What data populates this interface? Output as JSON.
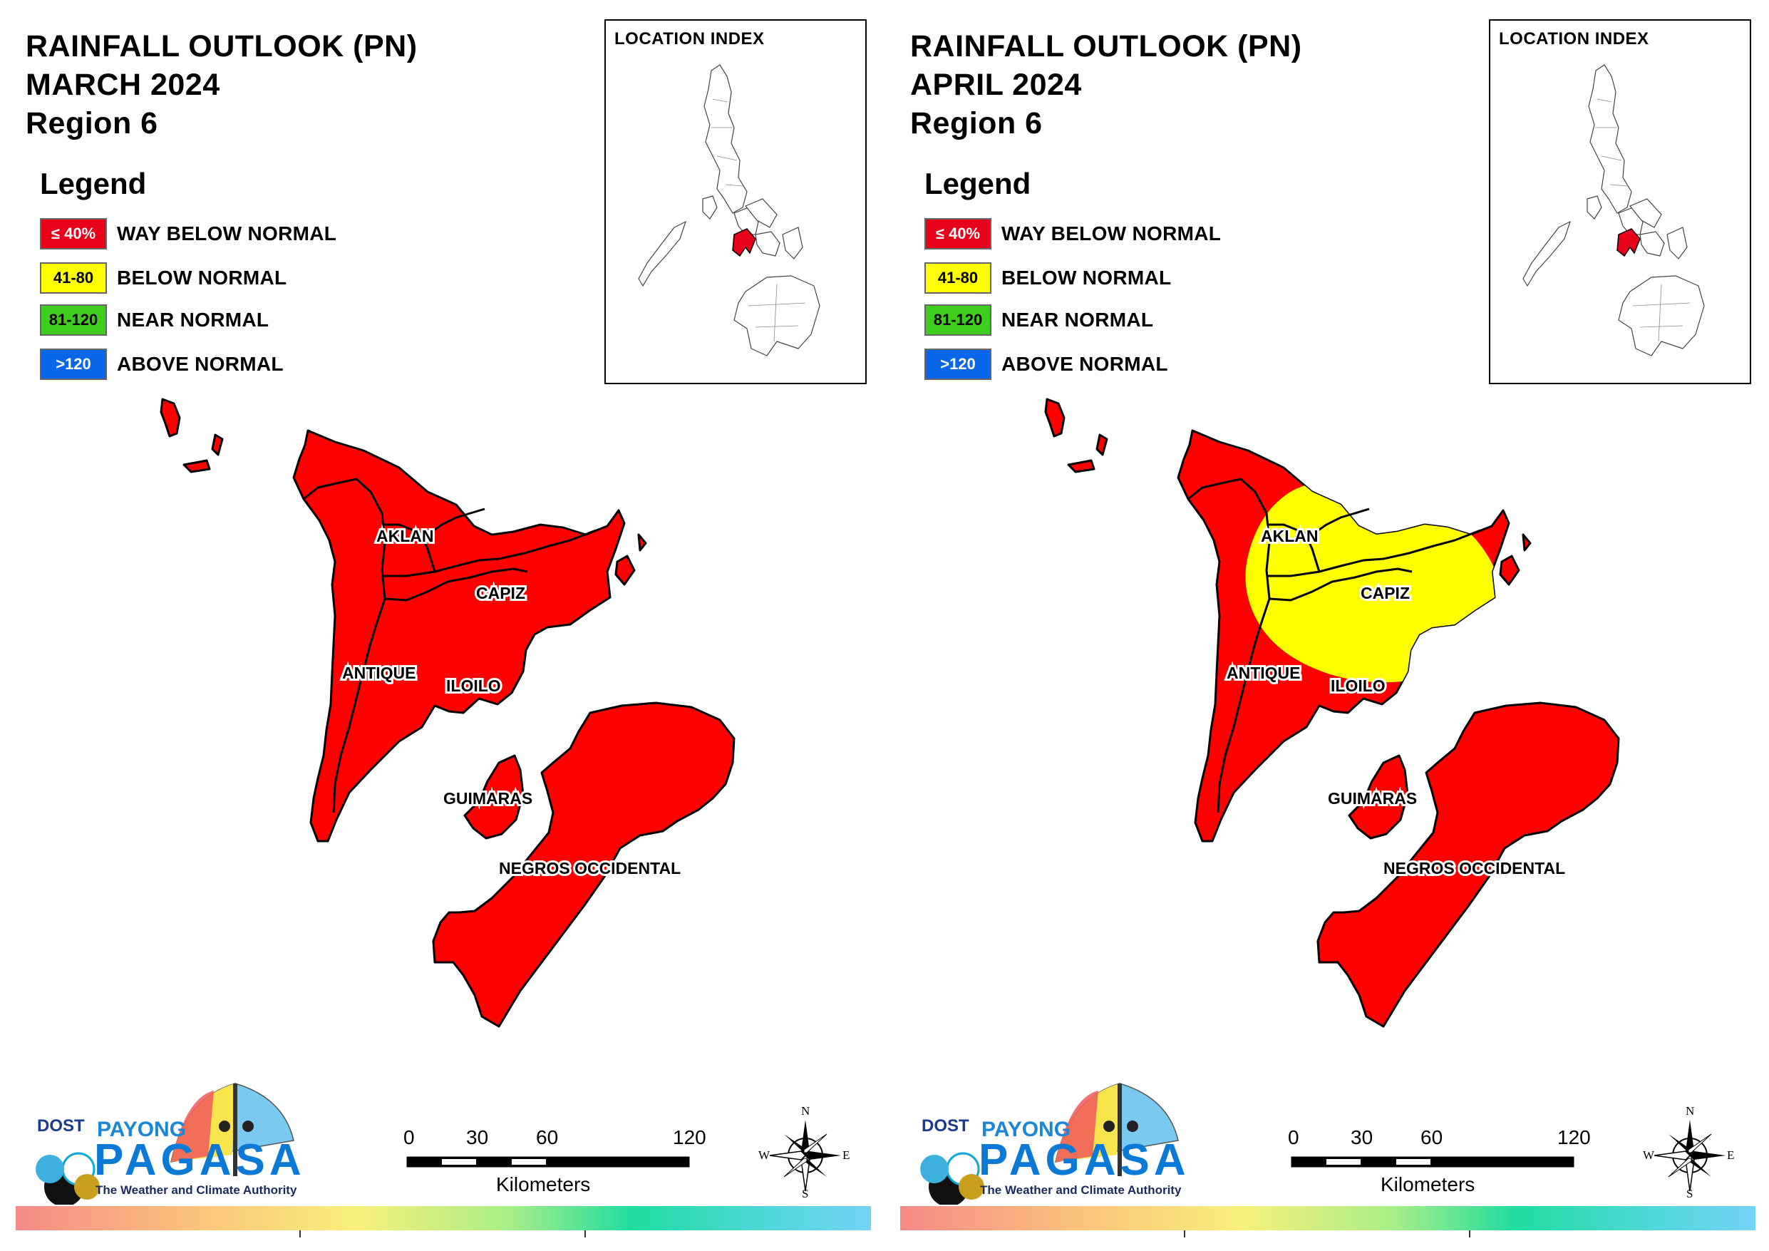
{
  "panels": [
    {
      "title_line1": "RAINFALL OUTLOOK (PN)",
      "title_line2": "MARCH 2024",
      "title_line3": "Region 6"
    },
    {
      "title_line1": "RAINFALL OUTLOOK (PN)",
      "title_line2": "APRIL 2024",
      "title_line3": "Region 6"
    }
  ],
  "legend": {
    "title": "Legend",
    "items": [
      {
        "range": "≤ 40%",
        "label": "WAY BELOW NORMAL",
        "color": "#e8001a",
        "text_color": "#ffffff"
      },
      {
        "range": "41-80",
        "label": "BELOW NORMAL",
        "color": "#ffff00",
        "text_color": "#000000"
      },
      {
        "range": "81-120",
        "label": "NEAR NORMAL",
        "color": "#3ecf1e",
        "text_color": "#000000"
      },
      {
        "range": ">120",
        "label": "ABOVE NORMAL",
        "color": "#0a66e8",
        "text_color": "#ffffff"
      }
    ]
  },
  "location_index": {
    "title": "LOCATION INDEX"
  },
  "provinces": {
    "aklan": "AKLAN",
    "capiz": "CAPIZ",
    "antique": "ANTIQUE",
    "iloilo": "ILOILO",
    "guimaras": "GUIMARAS",
    "negros": "NEGROS OCCIDENTAL"
  },
  "map_colors": {
    "way_below": "#ff0000",
    "below": "#ffff00"
  },
  "scale": {
    "labels": [
      "0",
      "30",
      "60",
      "120"
    ],
    "units": "Kilometers"
  },
  "compass": {
    "n": "N",
    "s": "S",
    "e": "E",
    "w": "W"
  },
  "logo": {
    "dost": "DOST",
    "payong": "PAYONG",
    "pagasa": "PAGASA",
    "tagline": "The Weather and Climate Authority"
  }
}
